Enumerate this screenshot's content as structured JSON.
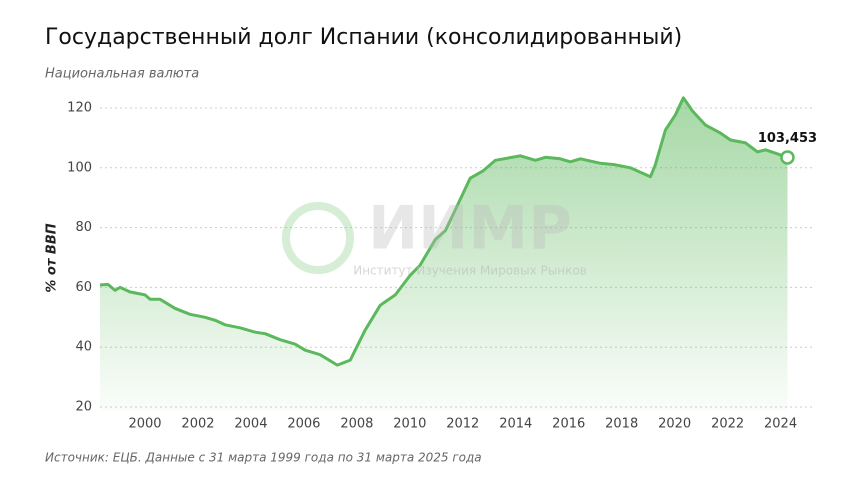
{
  "chart_data": {
    "type": "area",
    "title": "Государственный долг Испании (консолидированный)",
    "subtitle": "Национальная валюта",
    "y_label": "% от ВВП",
    "source": "Источник: ЕЦБ. Данные с 31 марта 1999 года по 31 марта 2025 года",
    "watermark": {
      "text": "ИИМР",
      "subtitle": "Институт Изучения Мировых Рынков"
    },
    "color": "#5cb85c",
    "grid": true,
    "xlim": [
      1998.3,
      2025.3
    ],
    "xticks": [
      2000,
      2002,
      2004,
      2006,
      2008,
      2010,
      2012,
      2014,
      2016,
      2018,
      2020,
      2022,
      2024
    ],
    "ylim": [
      19,
      125
    ],
    "yticks": [
      20,
      40,
      60,
      80,
      100,
      120
    ],
    "x": [
      1998.3,
      1998.6,
      1998.87,
      1999.06,
      1999.43,
      2000.0,
      2000.19,
      2000.57,
      2001.13,
      2001.7,
      2002.27,
      2002.65,
      2003.02,
      2003.59,
      2004.16,
      2004.54,
      2005.1,
      2005.67,
      2006.05,
      2006.61,
      2007.26,
      2007.75,
      2008.31,
      2008.88,
      2009.45,
      2010.01,
      2010.39,
      2010.96,
      2011.34,
      2011.72,
      2012.28,
      2012.77,
      2013.23,
      2014.17,
      2014.74,
      2015.12,
      2015.68,
      2016.06,
      2016.44,
      2017.2,
      2017.76,
      2018.33,
      2019.09,
      2019.27,
      2019.65,
      2020.03,
      2020.33,
      2020.67,
      2021.16,
      2021.73,
      2022.11,
      2022.68,
      2023.13,
      2023.43,
      2024.0,
      2024.26
    ],
    "values": [
      60.8,
      61,
      59,
      60,
      58.5,
      57.5,
      56,
      56,
      53,
      51,
      50,
      49,
      47.5,
      46.5,
      45,
      44.5,
      42.5,
      41,
      39,
      37.5,
      34,
      35.7,
      45.7,
      54,
      57.5,
      64,
      67.5,
      76,
      79,
      86,
      96.5,
      99,
      102.5,
      104,
      102.5,
      103.5,
      103,
      102,
      103,
      101.5,
      101,
      100,
      97,
      101,
      112.6,
      117.7,
      123.4,
      119,
      114.3,
      111.6,
      109.3,
      108.3,
      105.3,
      106,
      104.3,
      103.453
    ],
    "value_labels": [
      null,
      null,
      null,
      null,
      null,
      null,
      null,
      null,
      null,
      null,
      null,
      null,
      null,
      null,
      null,
      null,
      null,
      null,
      null,
      null,
      null,
      null,
      null,
      null,
      null,
      null,
      null,
      null,
      null,
      null,
      null,
      null,
      null,
      null,
      null,
      null,
      null,
      null,
      null,
      null,
      null,
      null,
      null,
      null,
      null,
      null,
      null,
      null,
      null,
      null,
      null,
      null,
      null,
      null,
      null,
      "103,453"
    ]
  }
}
